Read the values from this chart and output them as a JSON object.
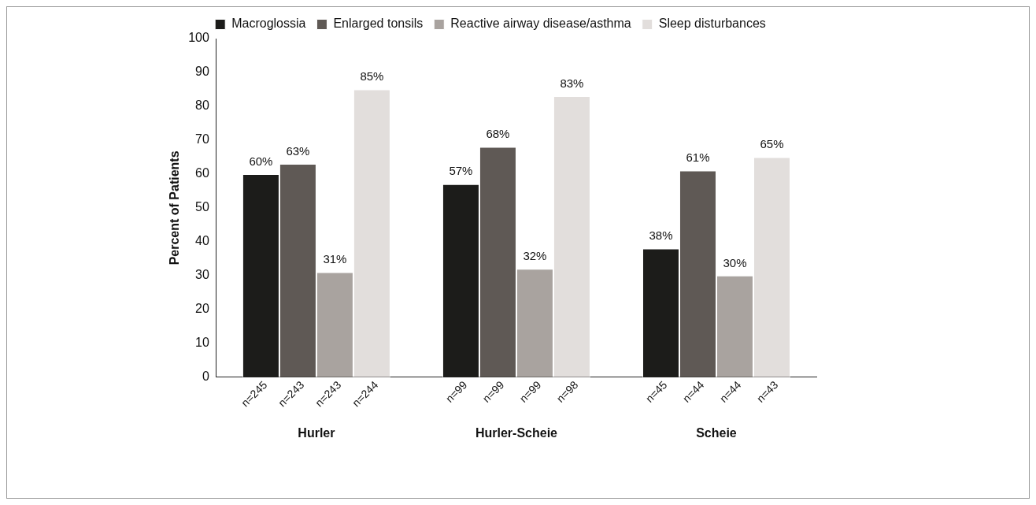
{
  "chart_data": {
    "type": "bar",
    "ylabel": "Percent of Patients",
    "categories": [
      "Hurler",
      "Hurler-Scheie",
      "Scheie"
    ],
    "series": [
      {
        "name": "Macroglossia",
        "color": "#1c1c1a",
        "values": [
          60,
          57,
          38
        ],
        "value_labels": [
          "60%",
          "57%",
          "38%"
        ]
      },
      {
        "name": "Enlarged tonsils",
        "color": "#5f5955",
        "values": [
          63,
          68,
          61
        ],
        "value_labels": [
          "63%",
          "68%",
          "61%"
        ]
      },
      {
        "name": "Reactive airway disease/asthma",
        "color": "#a9a39f",
        "values": [
          31,
          32,
          30
        ],
        "value_labels": [
          "31%",
          "32%",
          "30%"
        ]
      },
      {
        "name": "Sleep disturbances",
        "color": "#e2dedc",
        "values": [
          85,
          83,
          65
        ],
        "value_labels": [
          "85%",
          "83%",
          "65%"
        ]
      }
    ],
    "ylim": [
      0,
      100
    ],
    "yticks": [
      0,
      10,
      20,
      30,
      40,
      50,
      60,
      70,
      80,
      90,
      100
    ],
    "grid": false,
    "legend": "top",
    "annotations": [
      "n=245",
      "n=243",
      "n=243",
      "n=244",
      "n=99",
      "n=99",
      "n=99",
      "n=98",
      "n=45",
      "n=44",
      "n=44",
      "n=43"
    ]
  }
}
